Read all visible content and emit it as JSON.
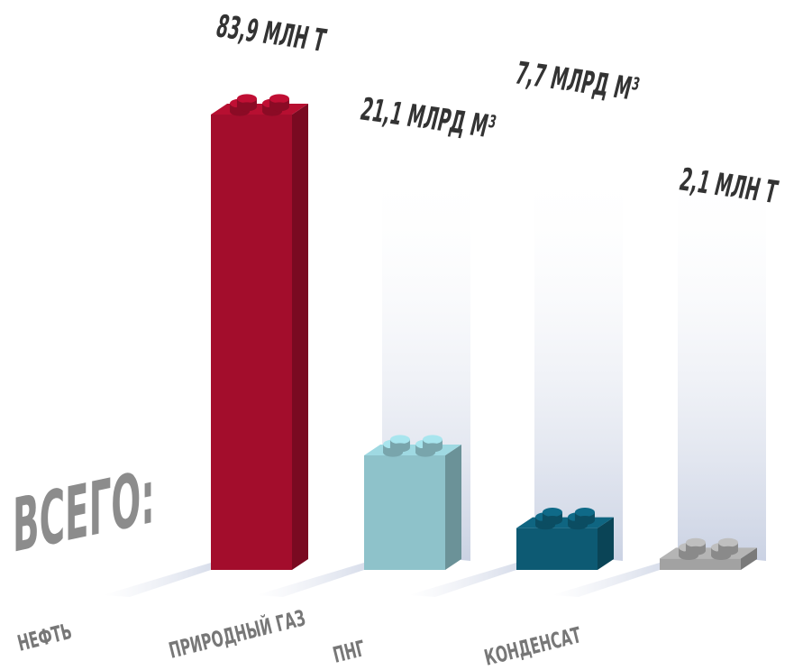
{
  "chart_data": {
    "type": "bar",
    "title": "ВСЕГО:",
    "categories": [
      "НЕФТЬ",
      "ПРИРОДНЫЙ ГАЗ",
      "ПНГ",
      "КОНДЕНСАТ"
    ],
    "values": [
      83.9,
      21.1,
      7.7,
      2.1
    ],
    "value_labels": [
      "83,9 МЛН Т",
      "21,1 МЛРД М³",
      "7,7 МЛРД М³",
      "2,1 МЛН Т"
    ],
    "colors": [
      "#a30d2c",
      "#8ec2ca",
      "#0d5a73",
      "#a2a2a2"
    ]
  }
}
